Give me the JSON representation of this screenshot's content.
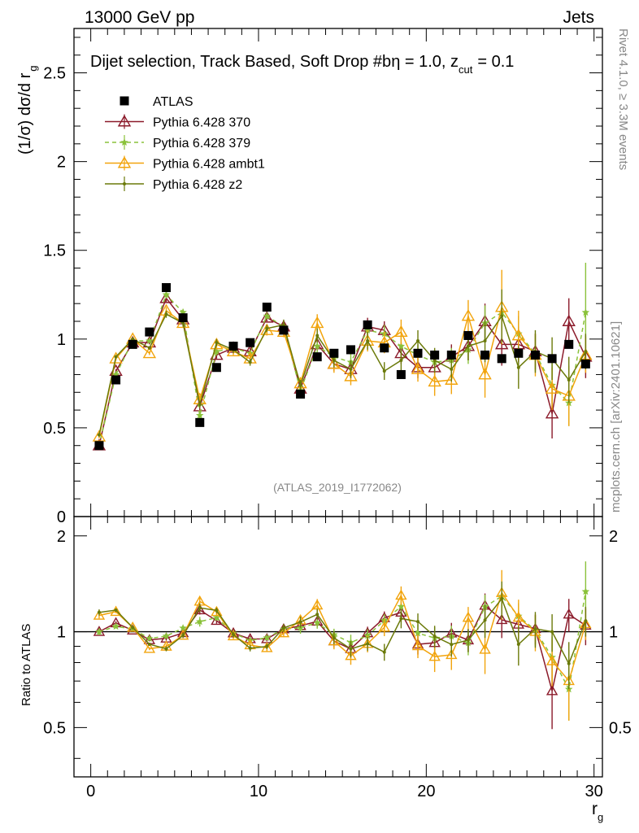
{
  "header": {
    "left": "13000 GeV pp",
    "right": "Jets"
  },
  "side_labels": {
    "rivet": "Rivet 4.1.0, ≥ 3.3M events",
    "mcplots": "mcplots.cern.ch [arXiv:2401.10621]"
  },
  "chart_data": {
    "type": "scatter",
    "title": "Dijet selection, Track Based, Soft Drop #b",
    "title_beta": "η = 1.0, z",
    "title_cut_sub": "cut",
    "title_tail": "= 0.1",
    "watermark": "(ATLAS_2019_I1772062)",
    "xlabel": "r",
    "xlabel_sub": "g",
    "ylabel": "(1/σ) dσ/d r",
    "ylabel_sub": "g",
    "ratio_ylabel": "Ratio to ATLAS",
    "xlim": [
      -1,
      30.5
    ],
    "ylim": [
      0,
      2.75
    ],
    "ratio_ylim": [
      0.35,
      2.3
    ],
    "x_ticks": [
      "0",
      "10",
      "20",
      "30"
    ],
    "x_tick_values": [
      0,
      10,
      20,
      30
    ],
    "y_ticks": [
      "0",
      "0.5",
      "1",
      "1.5",
      "2",
      "2.5"
    ],
    "y_tick_values": [
      0,
      0.5,
      1,
      1.5,
      2,
      2.5
    ],
    "ratio_y_ticks": [
      "0.5",
      "1",
      "2"
    ],
    "ratio_y_tick_values": [
      0.5,
      1,
      2
    ],
    "x": [
      0.5,
      1.5,
      2.5,
      3.5,
      4.5,
      5.5,
      6.5,
      7.5,
      8.5,
      9.5,
      10.5,
      11.5,
      12.5,
      13.5,
      14.5,
      15.5,
      16.5,
      17.5,
      18.5,
      19.5,
      20.5,
      21.5,
      22.5,
      23.5,
      24.5,
      25.5,
      26.5,
      27.5,
      28.5,
      29.5
    ],
    "series": [
      {
        "name": "ATLAS",
        "color": "#000000",
        "marker": "square",
        "values": [
          0.4,
          0.77,
          0.97,
          1.04,
          1.29,
          1.12,
          0.53,
          0.84,
          0.96,
          0.98,
          1.18,
          1.05,
          0.69,
          0.9,
          0.92,
          0.94,
          1.08,
          0.95,
          0.8,
          0.92,
          0.91,
          0.91,
          1.02,
          0.91,
          0.89,
          0.92,
          0.91,
          0.89,
          0.97,
          0.86
        ],
        "errors": [
          0.01,
          0.01,
          0.01,
          0.01,
          0.01,
          0.01,
          0.01,
          0.01,
          0.01,
          0.01,
          0.01,
          0.01,
          0.01,
          0.01,
          0.01,
          0.01,
          0.01,
          0.01,
          0.01,
          0.01,
          0.01,
          0.01,
          0.01,
          0.01,
          0.01,
          0.01,
          0.01,
          0.01,
          0.01,
          0.01
        ]
      },
      {
        "name": "Pythia 6.428 370",
        "color": "#8b1a2a",
        "marker": "triangle-open",
        "dashed": false,
        "values": [
          0.4,
          0.82,
          0.98,
          0.98,
          1.23,
          1.11,
          0.62,
          0.91,
          0.95,
          0.93,
          1.12,
          1.07,
          0.72,
          0.97,
          0.86,
          0.83,
          1.07,
          1.05,
          0.92,
          0.84,
          0.84,
          0.9,
          0.96,
          1.1,
          0.97,
          0.97,
          0.93,
          0.58,
          1.1,
          0.9
        ],
        "errors": [
          0.01,
          0.01,
          0.01,
          0.01,
          0.02,
          0.02,
          0.02,
          0.02,
          0.02,
          0.02,
          0.02,
          0.03,
          0.03,
          0.04,
          0.04,
          0.05,
          0.05,
          0.05,
          0.06,
          0.06,
          0.07,
          0.07,
          0.08,
          0.1,
          0.12,
          0.1,
          0.1,
          0.14,
          0.13,
          0.12
        ]
      },
      {
        "name": "Pythia 6.428 379",
        "color": "#8ac23a",
        "marker": "star",
        "dashed": true,
        "values": [
          0.4,
          0.8,
          0.99,
          0.99,
          1.25,
          1.15,
          0.57,
          0.93,
          0.95,
          0.92,
          1.13,
          1.07,
          0.71,
          0.96,
          0.9,
          0.87,
          1.05,
          1.03,
          0.96,
          0.91,
          0.87,
          0.88,
          0.94,
          1.09,
          1.15,
          1.03,
          0.92,
          0.74,
          0.64,
          1.15
        ],
        "errors": [
          0.01,
          0.01,
          0.01,
          0.01,
          0.02,
          0.02,
          0.02,
          0.02,
          0.02,
          0.02,
          0.02,
          0.03,
          0.03,
          0.04,
          0.04,
          0.05,
          0.05,
          0.05,
          0.06,
          0.06,
          0.07,
          0.07,
          0.08,
          0.1,
          0.12,
          0.1,
          0.1,
          0.12,
          0.13,
          0.28
        ]
      },
      {
        "name": "Pythia 6.428 ambt1",
        "color": "#f2a40c",
        "marker": "triangle-open",
        "dashed": false,
        "values": [
          0.45,
          0.89,
          1.0,
          0.92,
          1.16,
          1.09,
          0.66,
          0.97,
          0.93,
          0.89,
          1.05,
          1.04,
          0.75,
          1.09,
          0.86,
          0.79,
          0.99,
          0.98,
          1.04,
          0.83,
          0.76,
          0.77,
          1.13,
          0.8,
          1.18,
          1.02,
          0.91,
          0.72,
          0.68,
          0.91
        ],
        "errors": [
          0.01,
          0.01,
          0.01,
          0.01,
          0.02,
          0.02,
          0.02,
          0.02,
          0.02,
          0.02,
          0.03,
          0.03,
          0.03,
          0.05,
          0.05,
          0.05,
          0.06,
          0.06,
          0.07,
          0.07,
          0.08,
          0.08,
          0.09,
          0.13,
          0.21,
          0.14,
          0.12,
          0.12,
          0.17,
          0.1
        ]
      },
      {
        "name": "Pythia 6.428 z2",
        "color": "#6b7a0a",
        "marker": "dot",
        "dashed": false,
        "values": [
          0.46,
          0.9,
          1.0,
          0.95,
          1.14,
          1.09,
          0.63,
          0.98,
          0.94,
          0.87,
          1.06,
          1.08,
          0.74,
          1.02,
          0.88,
          0.83,
          0.99,
          0.82,
          0.88,
          0.99,
          0.88,
          0.83,
          0.96,
          0.99,
          1.13,
          0.84,
          0.93,
          0.89,
          0.77,
          0.93
        ],
        "errors": [
          0.01,
          0.01,
          0.01,
          0.01,
          0.02,
          0.02,
          0.02,
          0.02,
          0.02,
          0.02,
          0.02,
          0.03,
          0.03,
          0.04,
          0.04,
          0.05,
          0.05,
          0.05,
          0.06,
          0.06,
          0.07,
          0.07,
          0.08,
          0.12,
          0.15,
          0.12,
          0.12,
          0.12,
          0.13,
          0.1
        ]
      }
    ]
  }
}
